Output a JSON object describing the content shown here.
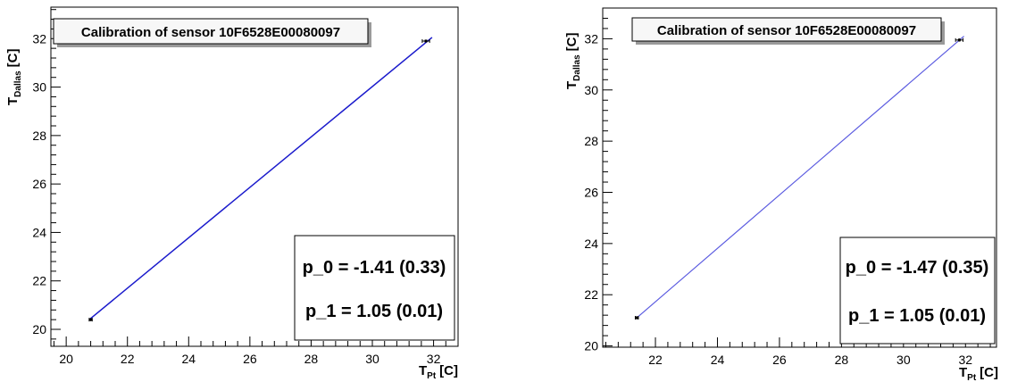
{
  "chart_data": [
    {
      "type": "line",
      "title": "Calibration of sensor 10F6528E00080097",
      "xlabel": "T_{Pt} [C]",
      "ylabel": "T_{Dallas} [C]",
      "xlim": [
        19.5,
        32.8
      ],
      "ylim": [
        19.3,
        33.3
      ],
      "xticks": [
        20,
        22,
        24,
        26,
        28,
        30,
        32
      ],
      "yticks": [
        20,
        22,
        24,
        26,
        28,
        30,
        32
      ],
      "fit_line": {
        "x": [
          20.75,
          31.95
        ],
        "y": [
          20.4,
          32.05
        ],
        "color": "#1a1acc"
      },
      "points": [
        {
          "x": 20.8,
          "y": 20.4,
          "xerr": 0.05,
          "yerr": 0.06
        },
        {
          "x": 31.75,
          "y": 31.9,
          "xerr": 0.12,
          "yerr": 0.06
        }
      ],
      "stats": {
        "p0": "p_0 = -1.41 (0.33)",
        "p1": "p_1 = 1.05 (0.01)"
      }
    },
    {
      "type": "line",
      "title": "Calibration of sensor 10F6528E00080097",
      "xlabel": "T_{Pt} [C]",
      "ylabel": "T_{Dallas} [C]",
      "xlim": [
        20.3,
        33.0
      ],
      "ylim": [
        19.95,
        33.2
      ],
      "xticks": [
        22,
        24,
        26,
        28,
        30,
        32
      ],
      "yticks": [
        20,
        22,
        24,
        26,
        28,
        30,
        32
      ],
      "fit_line": {
        "x": [
          21.4,
          31.95
        ],
        "y": [
          21.1,
          32.1
        ],
        "color": "#5a5ae0"
      },
      "points": [
        {
          "x": 21.4,
          "y": 21.1,
          "xerr": 0.05,
          "yerr": 0.06
        },
        {
          "x": 31.8,
          "y": 31.95,
          "xerr": 0.12,
          "yerr": 0.06
        }
      ],
      "stats": {
        "p0": "p_0 = -1.47 (0.35)",
        "p1": "p_1 = 1.05 (0.01)"
      }
    }
  ],
  "labels": {
    "y_main": "T",
    "y_sub": "Dallas",
    "y_unit": "[C]",
    "x_main": "T",
    "x_sub": "Pt",
    "x_unit": "[C]"
  }
}
